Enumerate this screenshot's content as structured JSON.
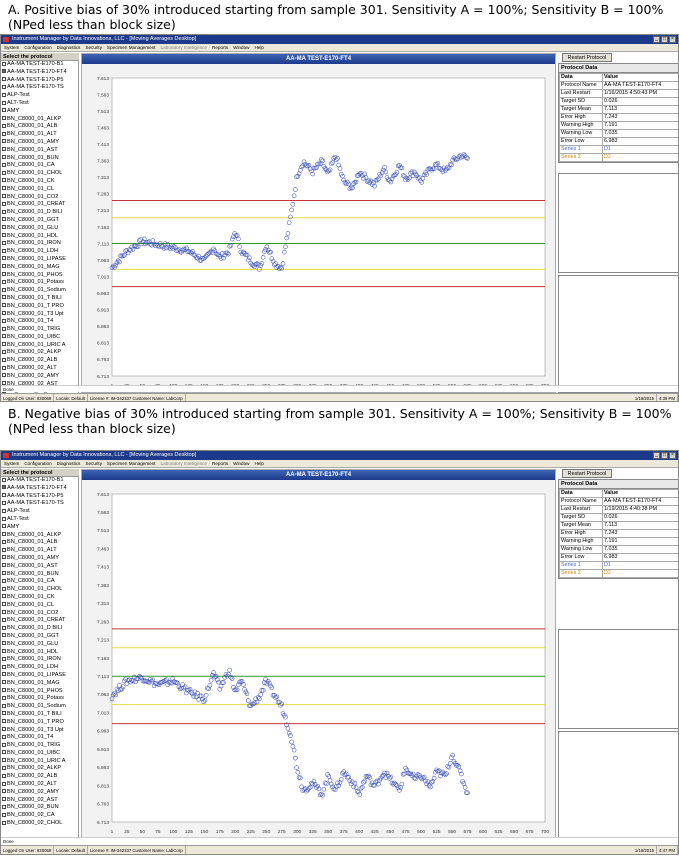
{
  "captions": {
    "a": "A. Positive bias of 30% introduced starting from sample 301. Sensitivity A = 100%; Sensitivity B = 100% (NPed less than block size)",
    "b": "B. Negative bias of 30% introduced starting from sample 301. Sensitivity A = 100%; Sensitivity B = 100% (NPed less than block size)"
  },
  "window": {
    "title": "Instrument Manager by Data Innovations, LLC - [Moving Averages Desktop]",
    "menu": [
      "System",
      "Configuration",
      "Diagnostics",
      "Security",
      "Specimen Management",
      "Laboratory Intelligence",
      "Reports",
      "Window",
      "Help"
    ],
    "menu_dim": [
      false,
      false,
      false,
      false,
      false,
      true,
      false,
      false,
      false
    ],
    "window_buttons": [
      "_",
      "□",
      "×"
    ]
  },
  "sidebar": {
    "header": "Select the protocol",
    "items": [
      "AA-MA TEST-E170-B1",
      "AA-MA TEST-E170-FT4",
      "AA-MA TEST-E170-P5",
      "AA-MA TEST-E170-TS",
      "ALP-Test",
      "ALT-Test",
      "AMY",
      "BN_C8000_01_ALKP",
      "BN_C8000_01_ALB",
      "BN_C8000_01_ALT",
      "BN_C8000_01_AMY",
      "BN_C8000_01_AST",
      "BN_C8000_01_BUN",
      "BN_C8000_01_CA",
      "BN_C8000_01_CHOL",
      "BN_C8000_01_CK",
      "BN_C8000_01_CL",
      "BN_C8000_01_CO2",
      "BN_C8000_01_CREAT",
      "BN_C8000_01_D BILI",
      "BN_C8000_01_GGT",
      "BN_C8000_01_GLU",
      "BN_C8000_01_HDL",
      "BN_C8000_01_IRON",
      "BN_C8000_01_LDH",
      "BN_C8000_01_LIPASE",
      "BN_C8000_01_MAG",
      "BN_C8000_01_PHOS",
      "BN_C8000_01_Potass",
      "BN_C8000_01_Sodium",
      "BN_C8000_01_T BILI",
      "BN_C8000_01_T PRO",
      "BN_C8000_01_T3 Upt",
      "BN_C8000_01_T4",
      "BN_C8000_01_TRIG",
      "BN_C8000_01_UIBC",
      "BN_C8000_01_URIC A",
      "BN_C8000_02_ALKP",
      "BN_C8000_02_ALB",
      "BN_C8000_02_ALT",
      "BN_C8000_02_AMY",
      "BN_C8000_02_AST",
      "BN_C8000_02_BUN",
      "BN_C8000_02_CA",
      "BN_C8000_02_CHOL"
    ]
  },
  "restart_label": "Restart Protocol",
  "protocol_data": {
    "header": "Protocol Data",
    "col_data": "Data",
    "col_value": "Value",
    "keys": [
      "Protocol Name",
      "Last Restart",
      "Target SD",
      "Target Mean",
      "Error High",
      "Warning High",
      "Warning Low",
      "Error Low",
      "Series 1",
      "Series 2"
    ],
    "values_a": [
      "AA-MA TEST-E170-FT4",
      "1/16/2015 4:50:43 PM",
      "0.026",
      "7.113",
      "7.243",
      "7.191",
      "7.035",
      "6.983",
      "D1",
      "D2"
    ],
    "values_b": [
      "AA-MA TEST-E170-FT4",
      "1/19/2015 4:40:38 PM",
      "0.026",
      "7.113",
      "7.243",
      "7.191",
      "7.035",
      "6.983",
      "D1",
      "D2"
    ]
  },
  "status": {
    "a": {
      "user": "Logged On User: 930069",
      "locale": "Locale: Default",
      "license": "License #: IM-342337 Customer Name: LabCorp",
      "date": "1/19/2015",
      "time": "4:39 PM",
      "done": "Done"
    },
    "b": {
      "user": "Logged On User: 930069",
      "locale": "Locale: Default",
      "license": "License #: IM-342337 Customer Name: LabCorp",
      "date": "1/19/2015",
      "time": "4:47 PM",
      "done": "Done"
    }
  },
  "colors": {
    "error": "#c8323c",
    "warning": "#e6dc3c",
    "target": "#2c9a2c",
    "marker": "#3a4fb8"
  },
  "chart_data": [
    {
      "type": "scatter",
      "title": "AA-MA TEST-E170-FT4",
      "yticks": [
        "7.613",
        "7.563",
        "7.513",
        "7.463",
        "7.413",
        "7.363",
        "7.313",
        "7.263",
        "7.213",
        "7.163",
        "7.113",
        "7.063",
        "7.013",
        "6.963",
        "6.913",
        "6.863",
        "6.813",
        "6.763",
        "6.713"
      ],
      "xticks": [
        "1",
        "25",
        "50",
        "75",
        "100",
        "125",
        "150",
        "175",
        "200",
        "225",
        "250",
        "275",
        "300",
        "325",
        "350",
        "375",
        "400",
        "425",
        "450",
        "475",
        "500",
        "525",
        "550",
        "575",
        "600",
        "625",
        "650",
        "675",
        "700"
      ],
      "ylim": [
        6.713,
        7.613
      ],
      "xlim": [
        1,
        700
      ],
      "hlines": [
        {
          "name": "Error High",
          "value": 7.243
        },
        {
          "name": "Warning High",
          "value": 7.191
        },
        {
          "name": "Target Mean",
          "value": 7.113
        },
        {
          "name": "Warning Low",
          "value": 7.035
        },
        {
          "name": "Error Low",
          "value": 6.983
        }
      ],
      "segments": [
        [
          1,
          7.04
        ],
        [
          25,
          7.09
        ],
        [
          50,
          7.12
        ],
        [
          75,
          7.11
        ],
        [
          100,
          7.1
        ],
        [
          125,
          7.09
        ],
        [
          150,
          7.06
        ],
        [
          165,
          7.1
        ],
        [
          175,
          7.07
        ],
        [
          190,
          7.09
        ],
        [
          200,
          7.15
        ],
        [
          210,
          7.09
        ],
        [
          225,
          7.06
        ],
        [
          240,
          7.04
        ],
        [
          250,
          7.11
        ],
        [
          265,
          7.05
        ],
        [
          275,
          7.04
        ],
        [
          290,
          7.2
        ],
        [
          300,
          7.32
        ],
        [
          310,
          7.36
        ],
        [
          325,
          7.33
        ],
        [
          340,
          7.36
        ],
        [
          350,
          7.32
        ],
        [
          362,
          7.38
        ],
        [
          375,
          7.3
        ],
        [
          390,
          7.28
        ],
        [
          400,
          7.33
        ],
        [
          412,
          7.31
        ],
        [
          425,
          7.29
        ],
        [
          440,
          7.34
        ],
        [
          450,
          7.3
        ],
        [
          465,
          7.35
        ],
        [
          475,
          7.31
        ],
        [
          490,
          7.33
        ],
        [
          500,
          7.3
        ],
        [
          515,
          7.34
        ],
        [
          525,
          7.35
        ],
        [
          540,
          7.33
        ],
        [
          550,
          7.36
        ],
        [
          565,
          7.38
        ],
        [
          575,
          7.37
        ]
      ]
    },
    {
      "type": "scatter",
      "title": "AA-MA TEST-E170-FT4",
      "yticks": [
        "7.613",
        "7.563",
        "7.513",
        "7.463",
        "7.413",
        "7.363",
        "7.313",
        "7.263",
        "7.213",
        "7.163",
        "7.113",
        "7.063",
        "7.013",
        "6.963",
        "6.913",
        "6.863",
        "6.813",
        "6.763",
        "6.713"
      ],
      "xticks": [
        "1",
        "25",
        "50",
        "75",
        "100",
        "125",
        "150",
        "175",
        "200",
        "225",
        "250",
        "275",
        "300",
        "325",
        "350",
        "375",
        "400",
        "425",
        "450",
        "475",
        "500",
        "525",
        "550",
        "575",
        "600",
        "625",
        "650",
        "675",
        "700"
      ],
      "ylim": [
        6.713,
        7.613
      ],
      "xlim": [
        1,
        700
      ],
      "hlines": [
        {
          "name": "Error High",
          "value": 7.243
        },
        {
          "name": "Warning High",
          "value": 7.191
        },
        {
          "name": "Target Mean",
          "value": 7.113
        },
        {
          "name": "Warning Low",
          "value": 7.035
        },
        {
          "name": "Error Low",
          "value": 6.983
        }
      ],
      "segments": [
        [
          1,
          7.06
        ],
        [
          25,
          7.1
        ],
        [
          50,
          7.11
        ],
        [
          75,
          7.09
        ],
        [
          100,
          7.1
        ],
        [
          125,
          7.07
        ],
        [
          150,
          7.05
        ],
        [
          165,
          7.12
        ],
        [
          175,
          7.08
        ],
        [
          190,
          7.13
        ],
        [
          200,
          7.07
        ],
        [
          210,
          7.1
        ],
        [
          225,
          7.03
        ],
        [
          240,
          7.06
        ],
        [
          250,
          7.1
        ],
        [
          260,
          7.07
        ],
        [
          275,
          7.03
        ],
        [
          290,
          6.95
        ],
        [
          300,
          6.86
        ],
        [
          310,
          6.8
        ],
        [
          325,
          6.82
        ],
        [
          340,
          6.79
        ],
        [
          350,
          6.84
        ],
        [
          362,
          6.8
        ],
        [
          375,
          6.85
        ],
        [
          390,
          6.82
        ],
        [
          400,
          6.79
        ],
        [
          412,
          6.84
        ],
        [
          425,
          6.81
        ],
        [
          440,
          6.85
        ],
        [
          450,
          6.83
        ],
        [
          465,
          6.8
        ],
        [
          475,
          6.86
        ],
        [
          490,
          6.83
        ],
        [
          500,
          6.84
        ],
        [
          515,
          6.81
        ],
        [
          525,
          6.85
        ],
        [
          540,
          6.84
        ],
        [
          550,
          6.9
        ],
        [
          565,
          6.84
        ],
        [
          575,
          6.79
        ]
      ]
    }
  ]
}
